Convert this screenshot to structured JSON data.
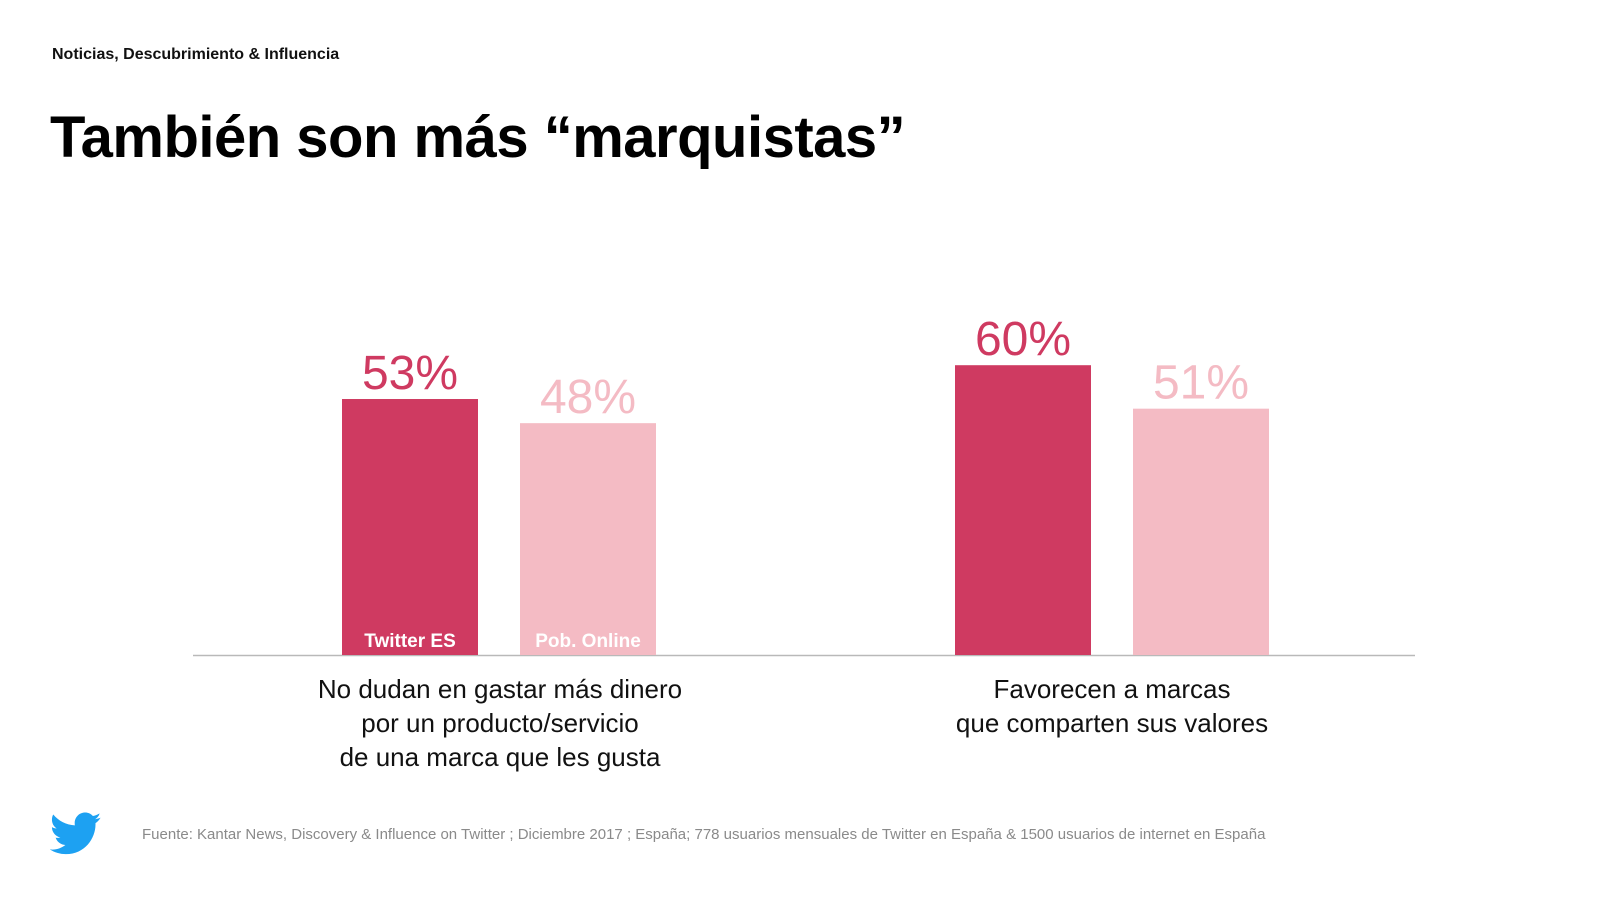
{
  "header": {
    "kicker": "Noticias, Descubrimiento & Influencia",
    "title": "También son más “marquistas”"
  },
  "colors": {
    "twitter": "#cf3a61",
    "online": "#f4bbc4",
    "baseline": "#b9b9b9",
    "bird": "#1da1f2"
  },
  "chart_data": {
    "type": "bar",
    "categories": [
      "No dudan en gastar más dinero por un producto/servicio de una marca que les gusta",
      "Favorecen a marcas que comparten sus valores"
    ],
    "category_lines": [
      [
        "No dudan en gastar más dinero",
        "por un producto/servicio",
        "de una marca que les gusta"
      ],
      [
        "Favorecen a marcas",
        "que comparten sus valores"
      ]
    ],
    "series": [
      {
        "name": "Twitter ES",
        "values": [
          53,
          60
        ],
        "labels": [
          "53%",
          "60%"
        ]
      },
      {
        "name": "Pob. Online",
        "values": [
          48,
          51
        ],
        "labels": [
          "48%",
          "51%"
        ]
      }
    ],
    "ylim": [
      0,
      100
    ],
    "grid": false,
    "legend": "inside-bars"
  },
  "footer": {
    "source": "Fuente: Kantar News, Discovery & Influence on Twitter ; Diciembre 2017 ; España; 778 usuarios mensuales de Twitter en España & 1500 usuarios de internet en España",
    "logo_icon": "twitter-bird-icon"
  }
}
